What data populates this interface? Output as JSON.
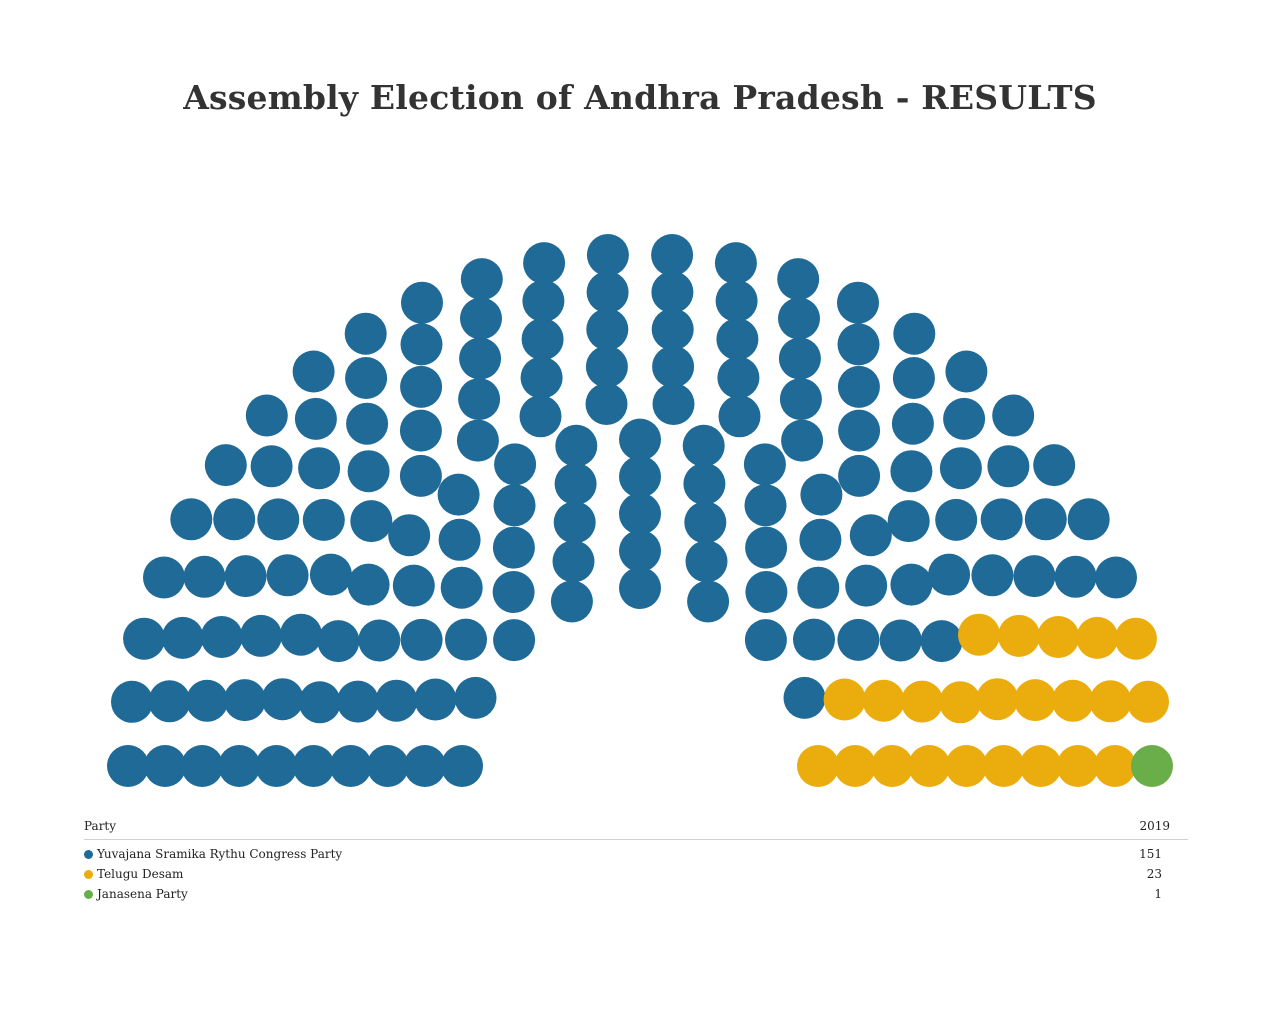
{
  "chart_data": {
    "type": "parliament",
    "title": "Assembly Election of Andhra Pradesh - RESULTS",
    "legend_header": {
      "party": "Party",
      "year": "2019"
    },
    "total_seats": 175,
    "rows": 10,
    "series": [
      {
        "name": "Yuvajana Sramika Rythu Congress Party",
        "seats": 151,
        "color": "#1f6a96"
      },
      {
        "name": "Telugu Desam",
        "seats": 23,
        "color": "#ebad0e"
      },
      {
        "name": "Janasena Party",
        "seats": 1,
        "color": "#6aae4a"
      }
    ]
  }
}
